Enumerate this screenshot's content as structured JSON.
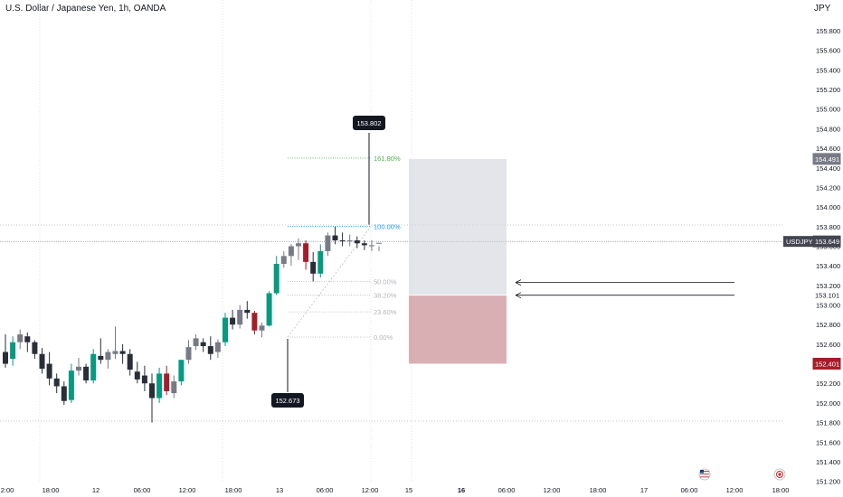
{
  "header": {
    "symbol_title": "U.S. Dollar / Japanese Yen, 1h, OANDA",
    "currency": "JPY"
  },
  "price_axis": {
    "ticks": [
      "155.800",
      "155.600",
      "155.400",
      "155.200",
      "155.000",
      "154.800",
      "154.600",
      "154.400",
      "154.200",
      "154.000",
      "153.800",
      "153.600",
      "153.400",
      "153.200",
      "153.000",
      "152.800",
      "152.600",
      "152.400",
      "152.200",
      "152.000",
      "151.800",
      "151.600",
      "151.400",
      "151.200"
    ],
    "markers": [
      {
        "price": 154.491,
        "label": "154.491",
        "color": "#787b86"
      },
      {
        "price": 153.649,
        "label": "153.649",
        "color": "#434651",
        "tag": "USDJPY"
      },
      {
        "price": 153.101,
        "label": "153.101",
        "color": "#ffffff",
        "text_color": "#131722"
      },
      {
        "price": 152.401,
        "label": "152.401",
        "color": "#a41d29"
      }
    ]
  },
  "time_axis": {
    "labels": [
      "2:00",
      "18:00",
      "12",
      "06:00",
      "12:00",
      "18:00",
      "13",
      "06:00",
      "12:00",
      "15",
      "16",
      "06:00",
      "12:00",
      "18:00",
      "17",
      "06:00",
      "12:00",
      "18:00"
    ]
  },
  "chart_data": {
    "type": "candlestick",
    "symbol": "USDJPY",
    "interval": "1h",
    "candles": [
      {
        "o": 152.52,
        "h": 152.7,
        "l": 152.36,
        "c": 152.4
      },
      {
        "o": 152.45,
        "h": 152.68,
        "l": 152.38,
        "c": 152.62
      },
      {
        "o": 152.62,
        "h": 152.75,
        "l": 152.55,
        "c": 152.7
      },
      {
        "o": 152.68,
        "h": 152.72,
        "l": 152.52,
        "c": 152.62
      },
      {
        "o": 152.62,
        "h": 152.64,
        "l": 152.45,
        "c": 152.5
      },
      {
        "o": 152.5,
        "h": 152.56,
        "l": 152.3,
        "c": 152.35
      },
      {
        "o": 152.4,
        "h": 152.52,
        "l": 152.18,
        "c": 152.25
      },
      {
        "o": 152.25,
        "h": 152.3,
        "l": 152.1,
        "c": 152.17
      },
      {
        "o": 152.17,
        "h": 152.22,
        "l": 151.98,
        "c": 152.02
      },
      {
        "o": 152.03,
        "h": 152.4,
        "l": 152.0,
        "c": 152.33
      },
      {
        "o": 152.33,
        "h": 152.46,
        "l": 152.28,
        "c": 152.37
      },
      {
        "o": 152.37,
        "h": 152.4,
        "l": 152.2,
        "c": 152.23
      },
      {
        "o": 152.23,
        "h": 152.55,
        "l": 152.2,
        "c": 152.5
      },
      {
        "o": 152.48,
        "h": 152.66,
        "l": 152.4,
        "c": 152.44
      },
      {
        "o": 152.44,
        "h": 152.55,
        "l": 152.35,
        "c": 152.52
      },
      {
        "o": 152.5,
        "h": 152.78,
        "l": 152.45,
        "c": 152.53
      },
      {
        "o": 152.53,
        "h": 152.6,
        "l": 152.4,
        "c": 152.5
      },
      {
        "o": 152.5,
        "h": 152.55,
        "l": 152.28,
        "c": 152.34
      },
      {
        "o": 152.32,
        "h": 152.42,
        "l": 152.2,
        "c": 152.24
      },
      {
        "o": 152.28,
        "h": 152.38,
        "l": 152.12,
        "c": 152.2
      },
      {
        "o": 152.2,
        "h": 152.3,
        "l": 151.8,
        "c": 152.05
      },
      {
        "o": 152.05,
        "h": 152.36,
        "l": 152.0,
        "c": 152.3
      },
      {
        "o": 152.3,
        "h": 152.38,
        "l": 152.08,
        "c": 152.12
      },
      {
        "o": 152.1,
        "h": 152.28,
        "l": 152.05,
        "c": 152.22
      },
      {
        "o": 152.22,
        "h": 152.44,
        "l": 152.18,
        "c": 152.44
      },
      {
        "o": 152.44,
        "h": 152.64,
        "l": 152.4,
        "c": 152.57
      },
      {
        "o": 152.58,
        "h": 152.7,
        "l": 152.54,
        "c": 152.66
      },
      {
        "o": 152.62,
        "h": 152.66,
        "l": 152.52,
        "c": 152.58
      },
      {
        "o": 152.58,
        "h": 152.68,
        "l": 152.44,
        "c": 152.5
      },
      {
        "o": 152.52,
        "h": 152.65,
        "l": 152.46,
        "c": 152.62
      },
      {
        "o": 152.62,
        "h": 152.92,
        "l": 152.58,
        "c": 152.87
      },
      {
        "o": 152.87,
        "h": 152.95,
        "l": 152.75,
        "c": 152.8
      },
      {
        "o": 152.8,
        "h": 153.0,
        "l": 152.76,
        "c": 152.95
      },
      {
        "o": 152.95,
        "h": 153.04,
        "l": 152.86,
        "c": 152.92
      },
      {
        "o": 152.92,
        "h": 152.94,
        "l": 152.7,
        "c": 152.74
      },
      {
        "o": 152.74,
        "h": 152.82,
        "l": 152.67,
        "c": 152.79
      },
      {
        "o": 152.79,
        "h": 153.14,
        "l": 152.78,
        "c": 153.12
      },
      {
        "o": 153.12,
        "h": 153.5,
        "l": 153.1,
        "c": 153.42
      },
      {
        "o": 153.42,
        "h": 153.55,
        "l": 153.38,
        "c": 153.5
      },
      {
        "o": 153.5,
        "h": 153.62,
        "l": 153.4,
        "c": 153.6
      },
      {
        "o": 153.6,
        "h": 153.68,
        "l": 153.46,
        "c": 153.63
      },
      {
        "o": 153.63,
        "h": 153.66,
        "l": 153.36,
        "c": 153.44
      },
      {
        "o": 153.44,
        "h": 153.54,
        "l": 153.24,
        "c": 153.32
      },
      {
        "o": 153.32,
        "h": 153.62,
        "l": 153.28,
        "c": 153.55
      },
      {
        "o": 153.55,
        "h": 153.74,
        "l": 153.5,
        "c": 153.71
      },
      {
        "o": 153.71,
        "h": 153.8,
        "l": 153.62,
        "c": 153.66
      },
      {
        "o": 153.66,
        "h": 153.74,
        "l": 153.6,
        "c": 153.65
      },
      {
        "o": 153.65,
        "h": 153.72,
        "l": 153.6,
        "c": 153.66
      },
      {
        "o": 153.66,
        "h": 153.7,
        "l": 153.58,
        "c": 153.63
      },
      {
        "o": 153.63,
        "h": 153.66,
        "l": 153.56,
        "c": 153.61
      },
      {
        "o": 153.6,
        "h": 153.66,
        "l": 153.55,
        "c": 153.61
      }
    ],
    "colors": {
      "up": "#089981",
      "down": "#a41d29",
      "neutral_up": "#787b86",
      "neutral_down": "#2a2e39"
    },
    "fibonacci": {
      "levels": [
        {
          "label": "161.80%",
          "price": 154.5,
          "color": "#4caf50"
        },
        {
          "label": "100.00%",
          "price": 153.802,
          "color": "#2196f3"
        },
        {
          "label": "50.00%",
          "price": 153.24,
          "color": "#b2b5be"
        },
        {
          "label": "38.20%",
          "price": 153.1,
          "color": "#b2b5be"
        },
        {
          "label": "23.60%",
          "price": 152.93,
          "color": "#b2b5be"
        },
        {
          "label": "0.00%",
          "price": 152.673,
          "color": "#b2b5be"
        }
      ]
    },
    "callouts": [
      {
        "label": "153.802",
        "price": 153.802
      },
      {
        "label": "152.673",
        "price": 152.673
      }
    ],
    "position": {
      "target": 154.491,
      "entry": 153.101,
      "stop": 152.401
    },
    "arrow_prices": [
      153.23,
      153.1
    ],
    "current_price": 153.649,
    "price_range": [
      151.12,
      156.0
    ]
  }
}
